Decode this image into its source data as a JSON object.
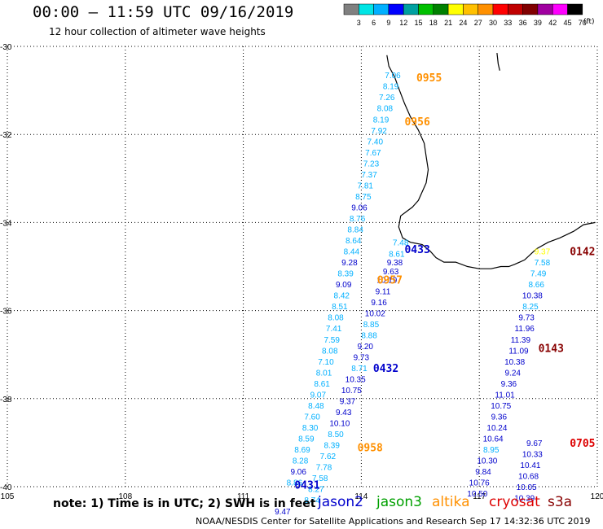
{
  "header": {
    "title": "00:00 – 11:59 UTC 09/16/2019",
    "subtitle": "12 hour collection of altimeter wave heights"
  },
  "legend": {
    "colors": [
      "#808080",
      "#00e5e5",
      "#00b0ff",
      "#0000ff",
      "#00a0a0",
      "#00c000",
      "#008000",
      "#ffff00",
      "#ffc000",
      "#ff9000",
      "#ff0000",
      "#c00000",
      "#800000",
      "#a000a0",
      "#ff00ff",
      "#000000"
    ],
    "labels": [
      "3",
      "6",
      "9",
      "12",
      "15",
      "18",
      "21",
      "24",
      "27",
      "30",
      "33",
      "36",
      "39",
      "42",
      "45",
      "70"
    ],
    "units": "(ft)"
  },
  "axes": {
    "lat_labels": [
      "-30",
      "-32",
      "-34",
      "-36",
      "-38",
      "-40"
    ],
    "lon_labels": [
      "105",
      "108",
      "111",
      "114",
      "117",
      "120"
    ],
    "lat_range": [
      -40,
      -30
    ],
    "lon_range": [
      105,
      120
    ]
  },
  "footer": {
    "note": "note:  1) Time is in UTC;  2) SWH is in feet",
    "credit": "NOAA/NESDIS Center for Satellite Applications and Research    Sep 17 14:32:36 UTC 2019",
    "satellites": [
      {
        "name": "jason2",
        "color": "#0000cc"
      },
      {
        "name": "jason3",
        "color": "#00a000"
      },
      {
        "name": "altika",
        "color": "#ff9000"
      },
      {
        "name": "cryosat",
        "color": "#dd0000"
      },
      {
        "name": "s3a",
        "color": "#880000"
      }
    ]
  },
  "chart_data": {
    "type": "map",
    "title": "00:00 – 11:59 UTC 09/16/2019",
    "subtitle": "12 hour collection of altimeter wave heights",
    "x": {
      "label": "",
      "range": [
        105,
        120
      ]
    },
    "y": {
      "label": "",
      "range": [
        -40,
        -30
      ]
    },
    "grid": true,
    "pass_labels": [
      {
        "text": "0955",
        "lon": 115.4,
        "lat": -30.7,
        "color": "#ff9000"
      },
      {
        "text": "0956",
        "lon": 115.1,
        "lat": -31.7,
        "color": "#ff9000"
      },
      {
        "text": "0957",
        "lon": 114.4,
        "lat": -35.3,
        "color": "#ff9000"
      },
      {
        "text": "0958",
        "lon": 113.9,
        "lat": -39.1,
        "color": "#ff9000"
      },
      {
        "text": "0431",
        "lon": 112.3,
        "lat": -39.95,
        "color": "#0000cc"
      },
      {
        "text": "0432",
        "lon": 114.3,
        "lat": -37.3,
        "color": "#0000cc"
      },
      {
        "text": "0433",
        "lon": 115.1,
        "lat": -34.6,
        "color": "#0000cc"
      },
      {
        "text": "0142",
        "lon": 119.3,
        "lat": -34.65,
        "color": "#880000"
      },
      {
        "text": "0143",
        "lon": 118.5,
        "lat": -36.85,
        "color": "#880000"
      },
      {
        "text": "0705",
        "lon": 119.3,
        "lat": -39.0,
        "color": "#dd0000"
      }
    ],
    "series": [
      {
        "name": "altika",
        "points": [
          {
            "lon": 114.8,
            "lat": -30.65,
            "v": "7.06",
            "c": "#00b0ff"
          },
          {
            "lon": 114.75,
            "lat": -30.9,
            "v": "8.19",
            "c": "#00b0ff"
          },
          {
            "lon": 114.65,
            "lat": -31.15,
            "v": "7.26",
            "c": "#00b0ff"
          },
          {
            "lon": 114.6,
            "lat": -31.4,
            "v": "8.08",
            "c": "#00b0ff"
          },
          {
            "lon": 114.5,
            "lat": -31.65,
            "v": "8.19",
            "c": "#00b0ff"
          },
          {
            "lon": 114.45,
            "lat": -31.9,
            "v": "7.92",
            "c": "#00b0ff"
          },
          {
            "lon": 114.35,
            "lat": -32.15,
            "v": "7.40",
            "c": "#00b0ff"
          },
          {
            "lon": 114.3,
            "lat": -32.4,
            "v": "7.67",
            "c": "#00b0ff"
          },
          {
            "lon": 114.25,
            "lat": -32.65,
            "v": "7.23",
            "c": "#00b0ff"
          },
          {
            "lon": 114.2,
            "lat": -32.9,
            "v": "7.37",
            "c": "#00b0ff"
          },
          {
            "lon": 114.1,
            "lat": -33.15,
            "v": "7.81",
            "c": "#00b0ff"
          },
          {
            "lon": 114.05,
            "lat": -33.4,
            "v": "8.75",
            "c": "#00b0ff"
          },
          {
            "lon": 113.95,
            "lat": -33.65,
            "v": "9.06",
            "c": "#0000cc"
          },
          {
            "lon": 113.9,
            "lat": -33.9,
            "v": "8.76",
            "c": "#00b0ff"
          },
          {
            "lon": 113.85,
            "lat": -34.15,
            "v": "8.84",
            "c": "#00b0ff"
          },
          {
            "lon": 113.8,
            "lat": -34.4,
            "v": "8.64",
            "c": "#00b0ff"
          },
          {
            "lon": 113.75,
            "lat": -34.65,
            "v": "8.44",
            "c": "#00b0ff"
          },
          {
            "lon": 113.7,
            "lat": -34.9,
            "v": "9.28",
            "c": "#0000cc"
          },
          {
            "lon": 113.6,
            "lat": -35.15,
            "v": "8.39",
            "c": "#00b0ff"
          },
          {
            "lon": 113.55,
            "lat": -35.4,
            "v": "9.09",
            "c": "#0000cc"
          },
          {
            "lon": 113.5,
            "lat": -35.65,
            "v": "8.42",
            "c": "#00b0ff"
          },
          {
            "lon": 113.45,
            "lat": -35.9,
            "v": "8.51",
            "c": "#00b0ff"
          },
          {
            "lon": 113.35,
            "lat": -36.15,
            "v": "8.08",
            "c": "#00b0ff"
          },
          {
            "lon": 113.3,
            "lat": -36.4,
            "v": "7.41",
            "c": "#00b0ff"
          },
          {
            "lon": 113.25,
            "lat": -36.65,
            "v": "7.59",
            "c": "#00b0ff"
          },
          {
            "lon": 113.2,
            "lat": -36.9,
            "v": "8.08",
            "c": "#00b0ff"
          },
          {
            "lon": 113.1,
            "lat": -37.15,
            "v": "7.10",
            "c": "#00b0ff"
          },
          {
            "lon": 113.05,
            "lat": -37.4,
            "v": "8.01",
            "c": "#00b0ff"
          },
          {
            "lon": 113.0,
            "lat": -37.65,
            "v": "8.61",
            "c": "#00b0ff"
          },
          {
            "lon": 112.9,
            "lat": -37.9,
            "v": "9.07",
            "c": "#00b0ff"
          },
          {
            "lon": 112.85,
            "lat": -38.15,
            "v": "8.48",
            "c": "#00b0ff"
          },
          {
            "lon": 112.75,
            "lat": -38.4,
            "v": "7.60",
            "c": "#00b0ff"
          },
          {
            "lon": 112.7,
            "lat": -38.65,
            "v": "8.30",
            "c": "#00b0ff"
          },
          {
            "lon": 112.6,
            "lat": -38.9,
            "v": "8.59",
            "c": "#00b0ff"
          },
          {
            "lon": 112.5,
            "lat": -39.15,
            "v": "8.69",
            "c": "#00b0ff"
          },
          {
            "lon": 112.45,
            "lat": -39.4,
            "v": "8.28",
            "c": "#00b0ff"
          },
          {
            "lon": 112.4,
            "lat": -39.65,
            "v": "9.06",
            "c": "#0000cc"
          },
          {
            "lon": 112.3,
            "lat": -39.9,
            "v": "8.86",
            "c": "#00b0ff"
          }
        ]
      },
      {
        "name": "jason2",
        "points": [
          {
            "lon": 115.0,
            "lat": -34.45,
            "v": "7.48",
            "c": "#00b0ff"
          },
          {
            "lon": 114.9,
            "lat": -34.7,
            "v": "8.61",
            "c": "#00b0ff"
          },
          {
            "lon": 114.85,
            "lat": -34.9,
            "v": "9.38",
            "c": "#0000cc"
          },
          {
            "lon": 114.75,
            "lat": -35.1,
            "v": "9.63",
            "c": "#0000cc"
          },
          {
            "lon": 114.65,
            "lat": -35.3,
            "v": "10.19",
            "c": "#0000cc"
          },
          {
            "lon": 114.55,
            "lat": -35.55,
            "v": "9.11",
            "c": "#0000cc"
          },
          {
            "lon": 114.45,
            "lat": -35.8,
            "v": "9.16",
            "c": "#0000cc"
          },
          {
            "lon": 114.35,
            "lat": -36.05,
            "v": "10.02",
            "c": "#0000cc"
          },
          {
            "lon": 114.25,
            "lat": -36.3,
            "v": "8.85",
            "c": "#00b0ff"
          },
          {
            "lon": 114.2,
            "lat": -36.55,
            "v": "8.88",
            "c": "#00b0ff"
          },
          {
            "lon": 114.1,
            "lat": -36.8,
            "v": "9.20",
            "c": "#0000cc"
          },
          {
            "lon": 114.0,
            "lat": -37.05,
            "v": "9.73",
            "c": "#0000cc"
          },
          {
            "lon": 113.95,
            "lat": -37.3,
            "v": "8.71",
            "c": "#00b0ff"
          },
          {
            "lon": 113.85,
            "lat": -37.55,
            "v": "10.35",
            "c": "#0000cc"
          },
          {
            "lon": 113.75,
            "lat": -37.8,
            "v": "10.75",
            "c": "#0000cc"
          },
          {
            "lon": 113.65,
            "lat": -38.05,
            "v": "9.37",
            "c": "#0000cc"
          },
          {
            "lon": 113.55,
            "lat": -38.3,
            "v": "9.43",
            "c": "#0000cc"
          },
          {
            "lon": 113.45,
            "lat": -38.55,
            "v": "10.10",
            "c": "#0000cc"
          },
          {
            "lon": 113.35,
            "lat": -38.8,
            "v": "8.50",
            "c": "#00b0ff"
          },
          {
            "lon": 113.25,
            "lat": -39.05,
            "v": "8.39",
            "c": "#00b0ff"
          },
          {
            "lon": 113.15,
            "lat": -39.3,
            "v": "7.62",
            "c": "#00b0ff"
          },
          {
            "lon": 113.05,
            "lat": -39.55,
            "v": "7.78",
            "c": "#00b0ff"
          },
          {
            "lon": 112.95,
            "lat": -39.8,
            "v": "7.58",
            "c": "#00b0ff"
          },
          {
            "lon": 112.85,
            "lat": -40.05,
            "v": "8.27",
            "c": "#00b0ff"
          },
          {
            "lon": 112.75,
            "lat": -40.3,
            "v": "8.74",
            "c": "#00b0ff"
          },
          {
            "lon": 112.0,
            "lat": -40.55,
            "v": "9.47",
            "c": "#0000cc"
          }
        ]
      },
      {
        "name": "s3a",
        "points": [
          {
            "lon": 118.6,
            "lat": -34.65,
            "v": "9.37",
            "c": "#ffff00"
          },
          {
            "lon": 118.6,
            "lat": -34.9,
            "v": "7.58",
            "c": "#00b0ff"
          },
          {
            "lon": 118.5,
            "lat": -35.15,
            "v": "7.49",
            "c": "#00b0ff"
          },
          {
            "lon": 118.45,
            "lat": -35.4,
            "v": "8.66",
            "c": "#00b0ff"
          },
          {
            "lon": 118.35,
            "lat": -35.65,
            "v": "10.38",
            "c": "#0000cc"
          },
          {
            "lon": 118.3,
            "lat": -35.9,
            "v": "8.25",
            "c": "#00b0ff"
          },
          {
            "lon": 118.2,
            "lat": -36.15,
            "v": "9.73",
            "c": "#0000cc"
          },
          {
            "lon": 118.15,
            "lat": -36.4,
            "v": "11.96",
            "c": "#0000cc"
          },
          {
            "lon": 118.05,
            "lat": -36.65,
            "v": "11.39",
            "c": "#0000cc"
          },
          {
            "lon": 118.0,
            "lat": -36.9,
            "v": "11.09",
            "c": "#0000cc"
          },
          {
            "lon": 117.9,
            "lat": -37.15,
            "v": "10.38",
            "c": "#0000cc"
          },
          {
            "lon": 117.85,
            "lat": -37.4,
            "v": "9.24",
            "c": "#0000cc"
          },
          {
            "lon": 117.75,
            "lat": -37.65,
            "v": "9.36",
            "c": "#0000cc"
          },
          {
            "lon": 117.65,
            "lat": -37.9,
            "v": "11.01",
            "c": "#0000cc"
          },
          {
            "lon": 117.55,
            "lat": -38.15,
            "v": "10.75",
            "c": "#0000cc"
          },
          {
            "lon": 117.5,
            "lat": -38.4,
            "v": "9.36",
            "c": "#0000cc"
          },
          {
            "lon": 117.45,
            "lat": -38.65,
            "v": "10.24",
            "c": "#0000cc"
          },
          {
            "lon": 117.35,
            "lat": -38.9,
            "v": "10.64",
            "c": "#0000cc"
          },
          {
            "lon": 117.3,
            "lat": -39.15,
            "v": "8.95",
            "c": "#00b0ff"
          },
          {
            "lon": 117.2,
            "lat": -39.4,
            "v": "10.30",
            "c": "#0000cc"
          },
          {
            "lon": 117.1,
            "lat": -39.65,
            "v": "9.84",
            "c": "#0000cc"
          },
          {
            "lon": 117.0,
            "lat": -39.9,
            "v": "10.76",
            "c": "#0000cc"
          },
          {
            "lon": 116.95,
            "lat": -40.15,
            "v": "10.50",
            "c": "#0000cc"
          }
        ]
      },
      {
        "name": "cryosat",
        "points": [
          {
            "lon": 118.4,
            "lat": -39.0,
            "v": "9.67",
            "c": "#0000cc"
          },
          {
            "lon": 118.35,
            "lat": -39.25,
            "v": "10.33",
            "c": "#0000cc"
          },
          {
            "lon": 118.3,
            "lat": -39.5,
            "v": "10.41",
            "c": "#0000cc"
          },
          {
            "lon": 118.25,
            "lat": -39.75,
            "v": "10.68",
            "c": "#0000cc"
          },
          {
            "lon": 118.2,
            "lat": -40.0,
            "v": "10.05",
            "c": "#0000cc"
          },
          {
            "lon": 118.15,
            "lat": -40.25,
            "v": "10.39",
            "c": "#0000cc"
          }
        ]
      }
    ]
  }
}
